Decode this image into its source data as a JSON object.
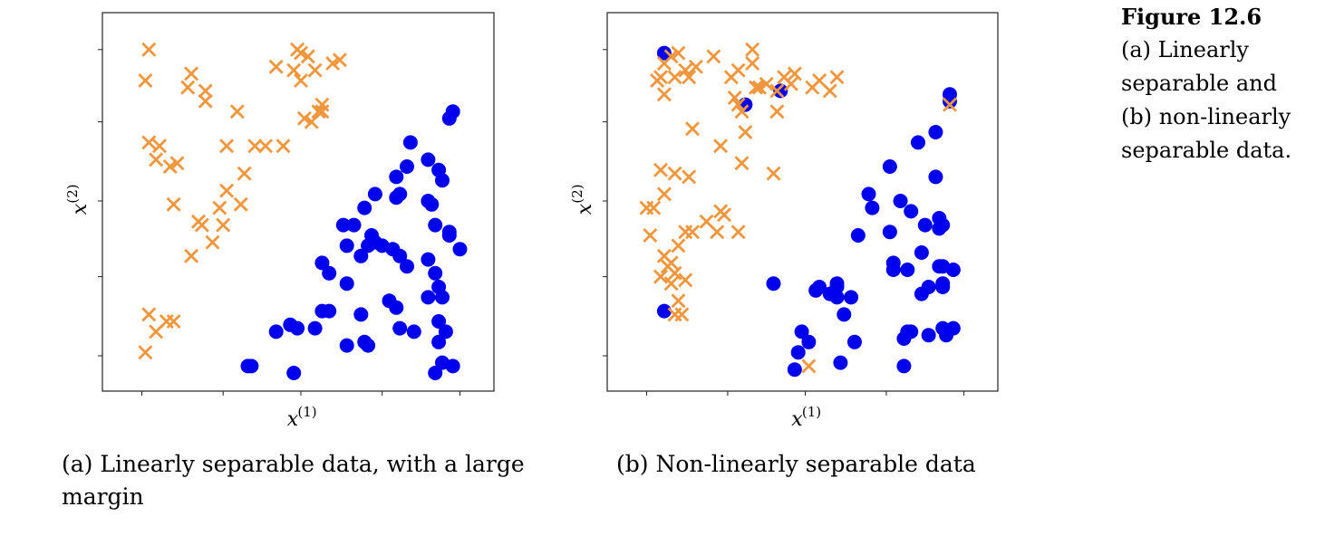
{
  "figure": {
    "number": "Figure 12.6",
    "caption_lines": [
      "(a) Linearly",
      "separable and",
      "(b) non-linearly",
      "separable data."
    ]
  },
  "colors": {
    "orange": "#f0963c",
    "blue": "#0000ee",
    "axis": "#222222"
  },
  "chart_data": [
    {
      "type": "scatter",
      "name": "a",
      "caption": "(a) Linearly separable data, with a large margin",
      "xlabel": "x",
      "xlabel_sup": "(1)",
      "ylabel": "x",
      "ylabel_sup": "(2)",
      "xlim": [
        0,
        100
      ],
      "ylim": [
        0,
        100
      ],
      "xticks": [
        5,
        28,
        50,
        73,
        95
      ],
      "yticks": [
        5,
        28,
        50,
        73,
        94
      ],
      "series": [
        {
          "name": "cross",
          "marker": "x",
          "color": "#f0963c",
          "points": [
            [
              7,
              94
            ],
            [
              6,
              85
            ],
            [
              18,
              83
            ],
            [
              19,
              87
            ],
            [
              23,
              82
            ],
            [
              23,
              79
            ],
            [
              32,
              76
            ],
            [
              43,
              89
            ],
            [
              49,
              94
            ],
            [
              50,
              93
            ],
            [
              52,
              92
            ],
            [
              48,
              88
            ],
            [
              50,
              85
            ],
            [
              54,
              88
            ],
            [
              59,
              90
            ],
            [
              61,
              91
            ],
            [
              53,
              73
            ],
            [
              56,
              76
            ],
            [
              56,
              78
            ],
            [
              51,
              74
            ],
            [
              55,
              76
            ],
            [
              7,
              67
            ],
            [
              10,
              66
            ],
            [
              9,
              62
            ],
            [
              13,
              60
            ],
            [
              15,
              61
            ],
            [
              29,
              66
            ],
            [
              37,
              66
            ],
            [
              40,
              66
            ],
            [
              45,
              66
            ],
            [
              34,
              58
            ],
            [
              14,
              49
            ],
            [
              29,
              53
            ],
            [
              27,
              48
            ],
            [
              33,
              49
            ],
            [
              22,
              43
            ],
            [
              21,
              44
            ],
            [
              28,
              43
            ],
            [
              25,
              38
            ],
            [
              19,
              34
            ],
            [
              7,
              17
            ],
            [
              9,
              12
            ],
            [
              12,
              15
            ],
            [
              14,
              15
            ],
            [
              6,
              6
            ]
          ]
        },
        {
          "name": "dot",
          "marker": "o",
          "color": "#0000ee",
          "points": [
            [
              93,
              76
            ],
            [
              92,
              74
            ],
            [
              81,
              67
            ],
            [
              86,
              62
            ],
            [
              80,
              60
            ],
            [
              89,
              59
            ],
            [
              90,
              56
            ],
            [
              77,
              57
            ],
            [
              78,
              52
            ],
            [
              77,
              51
            ],
            [
              71,
              52
            ],
            [
              86,
              50
            ],
            [
              87,
              49
            ],
            [
              68,
              48
            ],
            [
              62,
              43
            ],
            [
              65,
              43
            ],
            [
              63,
              37
            ],
            [
              70,
              40
            ],
            [
              69,
              37
            ],
            [
              67,
              34
            ],
            [
              71,
              38
            ],
            [
              73,
              37
            ],
            [
              76,
              36
            ],
            [
              78,
              34
            ],
            [
              80,
              31
            ],
            [
              56,
              32
            ],
            [
              58,
              29
            ],
            [
              63,
              26
            ],
            [
              86,
              33
            ],
            [
              92,
              41
            ],
            [
              88,
              43
            ],
            [
              92,
              40
            ],
            [
              95,
              36
            ],
            [
              88,
              29
            ],
            [
              89,
              25
            ],
            [
              90,
              22
            ],
            [
              56,
              18
            ],
            [
              58,
              18
            ],
            [
              67,
              17
            ],
            [
              77,
              19
            ],
            [
              75,
              21
            ],
            [
              82,
              12
            ],
            [
              78,
              13
            ],
            [
              89,
              15
            ],
            [
              89,
              9
            ],
            [
              86,
              22
            ],
            [
              47,
              14
            ],
            [
              49,
              13
            ],
            [
              43,
              12
            ],
            [
              54,
              13
            ],
            [
              63,
              8
            ],
            [
              68,
              9
            ],
            [
              69,
              8
            ],
            [
              91,
              12
            ],
            [
              90,
              3
            ],
            [
              93,
              2
            ],
            [
              35,
              2
            ],
            [
              36,
              2
            ],
            [
              48,
              0
            ],
            [
              88,
              0
            ]
          ]
        }
      ]
    },
    {
      "type": "scatter",
      "name": "b",
      "caption": "(b) Non-linearly separable data",
      "xlabel": "x",
      "xlabel_sup": "(1)",
      "ylabel": "x",
      "ylabel_sup": "(2)",
      "xlim": [
        0,
        100
      ],
      "ylim": [
        0,
        100
      ],
      "xticks": [
        5,
        28,
        50,
        73,
        95
      ],
      "yticks": [
        5,
        28,
        50,
        73,
        94
      ],
      "series": [
        {
          "name": "cross",
          "marker": "x",
          "color": "#f0963c",
          "points": [
            [
              14,
              93
            ],
            [
              12,
              92
            ],
            [
              10,
              90
            ],
            [
              24,
              92
            ],
            [
              35,
              94
            ],
            [
              35,
              90
            ],
            [
              31,
              88
            ],
            [
              29,
              86
            ],
            [
              19,
              89
            ],
            [
              16,
              88
            ],
            [
              9,
              86
            ],
            [
              10,
              81
            ],
            [
              8,
              85
            ],
            [
              13,
              86
            ],
            [
              17,
              86
            ],
            [
              30,
              80
            ],
            [
              39,
              84
            ],
            [
              36,
              83
            ],
            [
              37,
              83
            ],
            [
              32,
              76
            ],
            [
              42,
              82
            ],
            [
              46,
              84
            ],
            [
              44,
              86
            ],
            [
              47,
              87
            ],
            [
              52,
              83
            ],
            [
              54,
              85
            ],
            [
              57,
              82
            ],
            [
              59,
              86
            ],
            [
              31,
              78
            ],
            [
              42,
              76
            ],
            [
              33,
              70
            ],
            [
              26,
              66
            ],
            [
              18,
              71
            ],
            [
              32,
              61
            ],
            [
              41,
              58
            ],
            [
              9,
              59
            ],
            [
              13,
              58
            ],
            [
              17,
              57
            ],
            [
              10,
              52
            ],
            [
              7,
              48
            ],
            [
              5,
              48
            ],
            [
              27,
              46
            ],
            [
              22,
              44
            ],
            [
              16,
              41
            ],
            [
              18,
              41
            ],
            [
              25,
              41
            ],
            [
              31,
              41
            ],
            [
              26,
              47
            ],
            [
              6,
              40
            ],
            [
              14,
              37
            ],
            [
              10,
              34
            ],
            [
              12,
              32
            ],
            [
              11,
              31
            ],
            [
              13,
              29
            ],
            [
              9,
              28
            ],
            [
              16,
              27
            ],
            [
              12,
              26
            ],
            [
              14,
              21
            ],
            [
              13,
              17
            ],
            [
              15,
              17
            ],
            [
              51,
              2
            ],
            [
              91,
              78
            ]
          ]
        },
        {
          "name": "dot",
          "marker": "o",
          "color": "#0000ee",
          "points": [
            [
              10,
              93
            ],
            [
              33,
              78
            ],
            [
              43,
              82
            ],
            [
              91,
              79
            ],
            [
              91,
              81
            ],
            [
              87,
              70
            ],
            [
              82,
              67
            ],
            [
              87,
              57
            ],
            [
              74,
              60
            ],
            [
              68,
              52
            ],
            [
              69,
              48
            ],
            [
              77,
              50
            ],
            [
              80,
              47
            ],
            [
              88,
              45
            ],
            [
              84,
              43
            ],
            [
              89,
              43
            ],
            [
              88,
              42
            ],
            [
              74,
              41
            ],
            [
              65,
              40
            ],
            [
              83,
              35
            ],
            [
              75,
              32
            ],
            [
              75,
              30
            ],
            [
              88,
              31
            ],
            [
              89,
              31
            ],
            [
              92,
              30
            ],
            [
              79,
              30
            ],
            [
              89,
              25
            ],
            [
              83,
              23
            ],
            [
              85,
              25
            ],
            [
              41,
              26
            ],
            [
              59,
              26
            ],
            [
              53,
              24
            ],
            [
              54,
              25
            ],
            [
              57,
              23
            ],
            [
              59,
              25
            ],
            [
              63,
              22
            ],
            [
              59,
              22
            ],
            [
              89,
              26
            ],
            [
              10,
              18
            ],
            [
              61,
              17
            ],
            [
              49,
              12
            ],
            [
              51,
              9
            ],
            [
              48,
              6
            ],
            [
              64,
              9
            ],
            [
              79,
              12
            ],
            [
              80,
              12
            ],
            [
              85,
              11
            ],
            [
              78,
              10
            ],
            [
              89,
              13
            ],
            [
              92,
              13
            ],
            [
              90,
              11
            ],
            [
              47,
              1
            ],
            [
              60,
              3
            ],
            [
              78,
              2
            ]
          ]
        }
      ]
    }
  ]
}
